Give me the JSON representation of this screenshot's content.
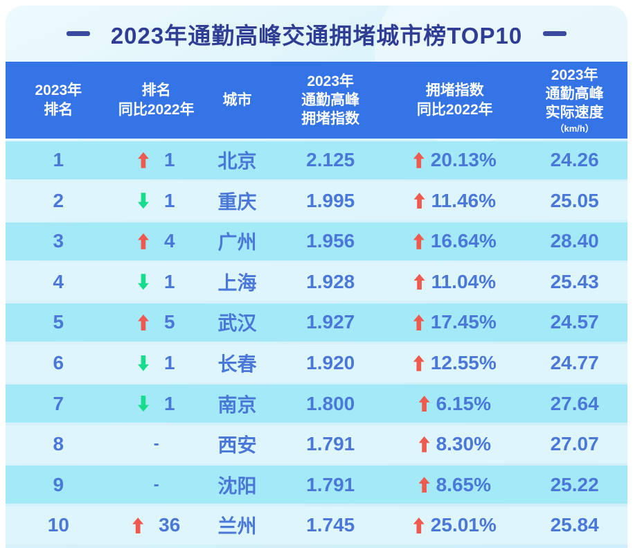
{
  "title": {
    "text": "2023年通勤高峰交通拥堵城市榜TOP10"
  },
  "colors": {
    "header_bg": "#3474e6",
    "row_odd_bg": "#a4e9f8",
    "row_even_bg": "#def5fc",
    "text_blue": "#4a78d8",
    "title_navy": "#2f3e94",
    "arrow_up_red": "#ee5a4e",
    "arrow_down_green": "#17dc8c"
  },
  "chart_data": {
    "type": "table",
    "title": "2023年通勤高峰交通拥堵城市榜TOP10",
    "columns": [
      {
        "lines": [
          "2023年",
          "排名"
        ]
      },
      {
        "lines": [
          "排名",
          "同比2022年"
        ]
      },
      {
        "lines": [
          "城市"
        ]
      },
      {
        "lines": [
          "2023年",
          "通勤高峰",
          "拥堵指数"
        ]
      },
      {
        "lines": [
          "拥堵指数",
          "同比2022年"
        ]
      },
      {
        "lines": [
          "2023年",
          "通勤高峰",
          "实际速度"
        ],
        "sublabel": "（km/h）"
      }
    ],
    "rows": [
      {
        "rank": "1",
        "rank_change_dir": "up",
        "rank_change": "1",
        "city": "北京",
        "index": "2.125",
        "index_change_dir": "up",
        "index_change": "20.13%",
        "speed": "24.26"
      },
      {
        "rank": "2",
        "rank_change_dir": "down",
        "rank_change": "1",
        "city": "重庆",
        "index": "1.995",
        "index_change_dir": "up",
        "index_change": "11.46%",
        "speed": "25.05"
      },
      {
        "rank": "3",
        "rank_change_dir": "up",
        "rank_change": "4",
        "city": "广州",
        "index": "1.956",
        "index_change_dir": "up",
        "index_change": "16.64%",
        "speed": "28.40"
      },
      {
        "rank": "4",
        "rank_change_dir": "down",
        "rank_change": "1",
        "city": "上海",
        "index": "1.928",
        "index_change_dir": "up",
        "index_change": "11.04%",
        "speed": "25.43"
      },
      {
        "rank": "5",
        "rank_change_dir": "up",
        "rank_change": "5",
        "city": "武汉",
        "index": "1.927",
        "index_change_dir": "up",
        "index_change": "17.45%",
        "speed": "24.57"
      },
      {
        "rank": "6",
        "rank_change_dir": "down",
        "rank_change": "1",
        "city": "长春",
        "index": "1.920",
        "index_change_dir": "up",
        "index_change": "12.55%",
        "speed": "24.77"
      },
      {
        "rank": "7",
        "rank_change_dir": "down",
        "rank_change": "1",
        "city": "南京",
        "index": "1.800",
        "index_change_dir": "up",
        "index_change": "6.15%",
        "speed": "27.64"
      },
      {
        "rank": "8",
        "rank_change_dir": "none",
        "rank_change": "-",
        "city": "西安",
        "index": "1.791",
        "index_change_dir": "up",
        "index_change": "8.30%",
        "speed": "27.07"
      },
      {
        "rank": "9",
        "rank_change_dir": "none",
        "rank_change": "-",
        "city": "沈阳",
        "index": "1.791",
        "index_change_dir": "up",
        "index_change": "8.65%",
        "speed": "25.22"
      },
      {
        "rank": "10",
        "rank_change_dir": "up",
        "rank_change": "36",
        "city": "兰州",
        "index": "1.745",
        "index_change_dir": "up",
        "index_change": "25.01%",
        "speed": "25.84"
      }
    ]
  }
}
